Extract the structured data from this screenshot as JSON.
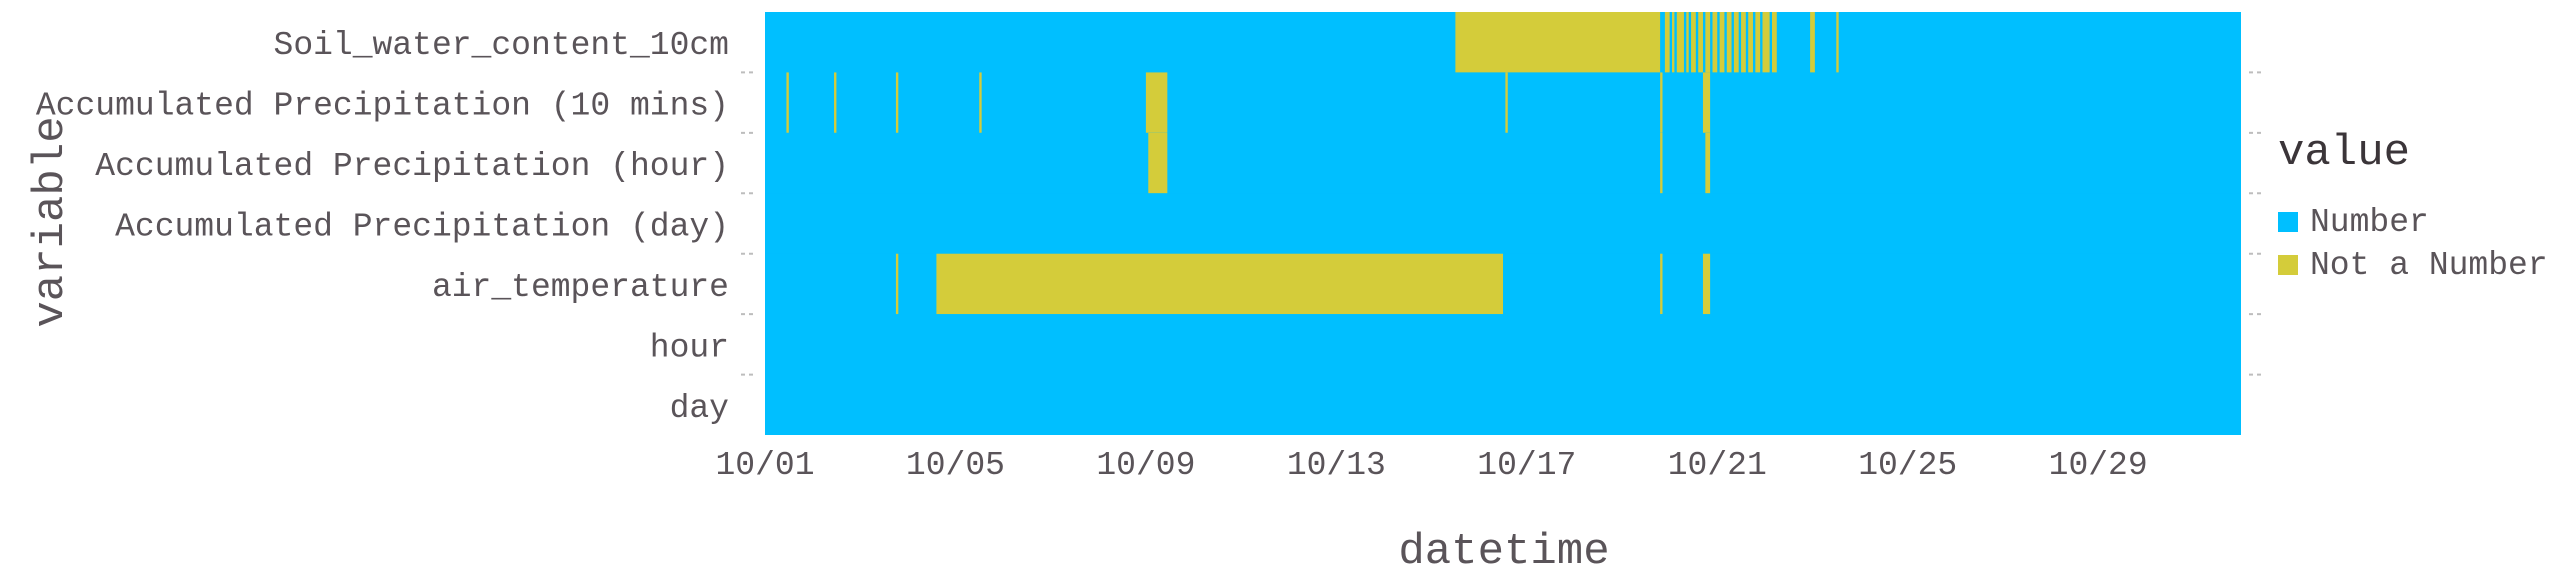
{
  "chart_data": {
    "type": "heatmap",
    "title": "",
    "xlabel": "datetime",
    "ylabel": "variable",
    "x_ticks": [
      "10/01",
      "10/05",
      "10/09",
      "10/13",
      "10/17",
      "10/21",
      "10/25",
      "10/29"
    ],
    "x_range_days": [
      1,
      32
    ],
    "rows": [
      {
        "name": "Soil_water_content_10cm",
        "nan_intervals": [
          [
            15.5,
            19.8
          ],
          [
            19.9,
            20.0
          ],
          [
            20.05,
            20.1
          ],
          [
            20.15,
            20.3
          ],
          [
            20.35,
            20.4
          ],
          [
            20.45,
            20.55
          ],
          [
            20.6,
            20.7
          ],
          [
            20.75,
            20.85
          ],
          [
            20.9,
            21.0
          ],
          [
            21.05,
            21.15
          ],
          [
            21.2,
            21.3
          ],
          [
            21.35,
            21.45
          ],
          [
            21.5,
            21.6
          ],
          [
            21.65,
            21.75
          ],
          [
            21.8,
            21.9
          ],
          [
            21.95,
            22.1
          ],
          [
            22.15,
            22.25
          ],
          [
            22.95,
            23.05
          ],
          [
            23.5,
            23.55
          ]
        ]
      },
      {
        "name": "Accumulated Precipitation (10 mins)",
        "nan_intervals": [
          [
            1.45,
            1.5
          ],
          [
            2.45,
            2.5
          ],
          [
            3.75,
            3.8
          ],
          [
            5.5,
            5.55
          ],
          [
            9.0,
            9.45
          ],
          [
            16.55,
            16.6
          ],
          [
            19.8,
            19.85
          ],
          [
            20.7,
            20.85
          ]
        ]
      },
      {
        "name": "Accumulated Precipitation (hour)",
        "nan_intervals": [
          [
            9.05,
            9.45
          ],
          [
            19.8,
            19.85
          ],
          [
            20.75,
            20.85
          ]
        ]
      },
      {
        "name": "Accumulated Precipitation (day)",
        "nan_intervals": []
      },
      {
        "name": "air_temperature",
        "nan_intervals": [
          [
            3.75,
            3.8
          ],
          [
            4.6,
            16.5
          ],
          [
            19.8,
            19.85
          ],
          [
            20.7,
            20.85
          ]
        ]
      },
      {
        "name": "hour",
        "nan_intervals": []
      },
      {
        "name": "day",
        "nan_intervals": []
      }
    ],
    "legend": {
      "title": "value",
      "placement": "right",
      "entries": [
        {
          "label": "Number",
          "color": "#00bfff"
        },
        {
          "label": "Not a Number",
          "color": "#d4cc3a"
        }
      ]
    },
    "colors": {
      "number": "#00bfff",
      "nan": "#d4cc3a",
      "text": "#5a5459",
      "title_text": "#3b3539",
      "tick": "#bdbdbd"
    }
  }
}
